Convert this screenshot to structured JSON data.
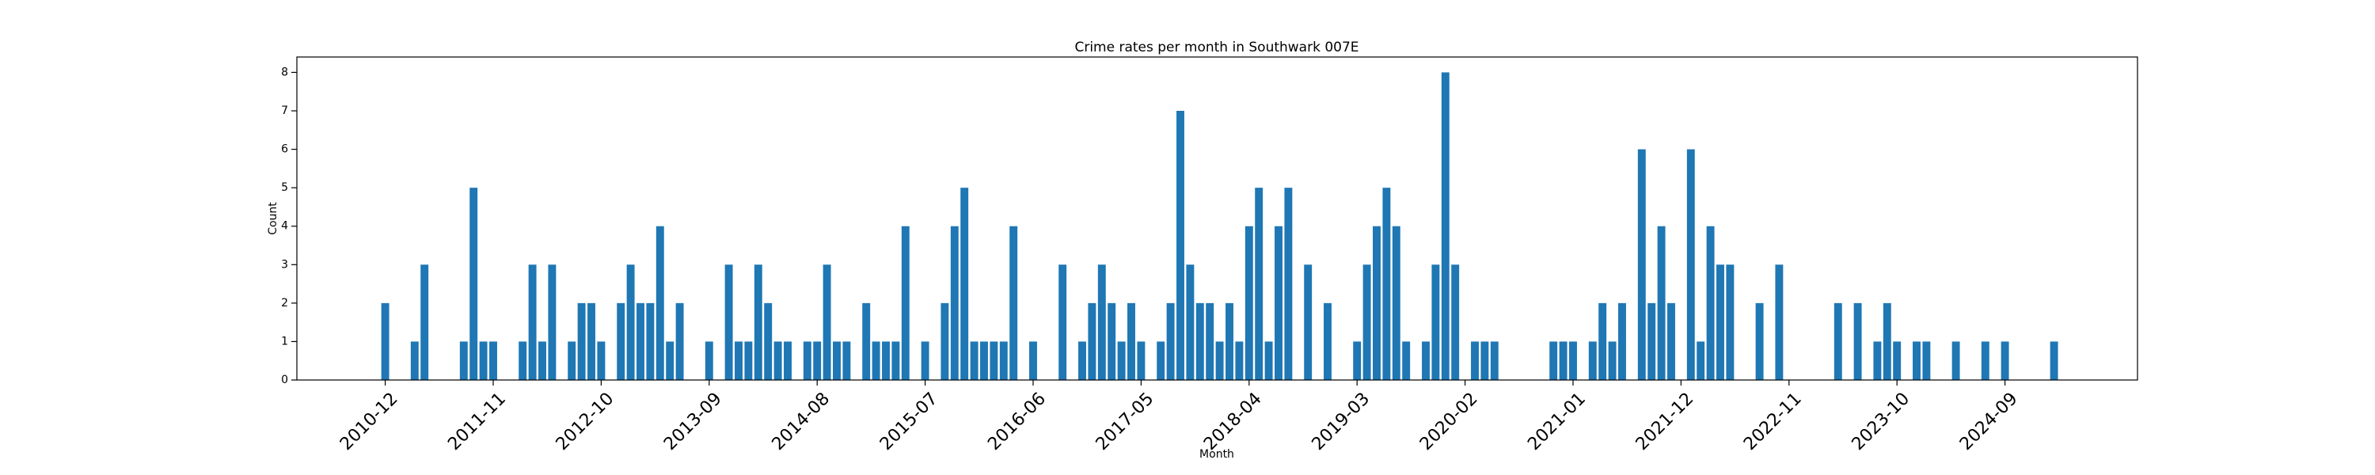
{
  "chart_data": {
    "type": "bar",
    "title": "Crime rates per month in Southwark 007E",
    "x_label": "Month",
    "y_label": "Count",
    "color": "#1f77b4",
    "categories": [
      "2010-12",
      null,
      null,
      null,
      null,
      null,
      null,
      null,
      null,
      null,
      null,
      "2011-11",
      null,
      null,
      null,
      null,
      null,
      null,
      null,
      null,
      null,
      null,
      "2012-10",
      null,
      null,
      null,
      null,
      null,
      null,
      null,
      null,
      null,
      null,
      "2013-09",
      null,
      null,
      null,
      null,
      null,
      null,
      null,
      null,
      null,
      null,
      "2014-08",
      null,
      null,
      null,
      null,
      null,
      null,
      null,
      null,
      null,
      null,
      "2015-07",
      null,
      null,
      null,
      null,
      null,
      null,
      null,
      null,
      null,
      null,
      "2016-06",
      null,
      null,
      null,
      null,
      null,
      null,
      null,
      null,
      null,
      null,
      "2017-05",
      null,
      null,
      null,
      null,
      null,
      null,
      null,
      null,
      null,
      null,
      "2018-04",
      null,
      null,
      null,
      null,
      null,
      null,
      null,
      null,
      null,
      null,
      "2019-03",
      null,
      null,
      null,
      null,
      null,
      null,
      null,
      null,
      null,
      null,
      "2020-02",
      null,
      null,
      null,
      null,
      null,
      null,
      null,
      null,
      null,
      null,
      "2021-01",
      null,
      null,
      null,
      null,
      null,
      null,
      null,
      null,
      null,
      null,
      "2021-12",
      null,
      null,
      null,
      null,
      null,
      null,
      null,
      null,
      null,
      null,
      "2022-11",
      null,
      null,
      null,
      null,
      null,
      null,
      null,
      null,
      null,
      null,
      "2023-10",
      null,
      null,
      null,
      null,
      null,
      null,
      null,
      null,
      null,
      null,
      "2024-09",
      null,
      null,
      null,
      null,
      null
    ],
    "values": [
      2,
      0,
      0,
      1,
      3,
      0,
      0,
      0,
      1,
      5,
      1,
      1,
      0,
      0,
      1,
      3,
      1,
      3,
      0,
      1,
      2,
      2,
      1,
      0,
      2,
      3,
      2,
      2,
      4,
      1,
      2,
      0,
      0,
      1,
      0,
      3,
      1,
      1,
      3,
      2,
      1,
      1,
      0,
      1,
      1,
      3,
      1,
      1,
      0,
      2,
      1,
      1,
      1,
      4,
      0,
      1,
      0,
      2,
      4,
      5,
      1,
      1,
      1,
      1,
      4,
      0,
      1,
      0,
      0,
      3,
      0,
      1,
      2,
      3,
      2,
      1,
      2,
      1,
      0,
      1,
      2,
      7,
      3,
      2,
      2,
      1,
      2,
      1,
      4,
      5,
      1,
      4,
      5,
      0,
      3,
      0,
      2,
      0,
      0,
      1,
      3,
      4,
      5,
      4,
      1,
      0,
      1,
      3,
      8,
      3,
      0,
      1,
      1,
      1,
      0,
      0,
      0,
      0,
      0,
      1,
      1,
      1,
      0,
      1,
      2,
      1,
      2,
      0,
      6,
      2,
      4,
      2,
      0,
      6,
      1,
      4,
      3,
      3,
      0,
      0,
      2,
      0,
      3,
      0,
      0,
      0,
      0,
      0,
      2,
      0,
      2,
      0,
      1,
      2,
      1,
      0,
      1,
      1,
      0,
      0,
      1,
      0,
      0,
      1,
      0,
      1,
      0,
      0,
      0,
      0,
      1
    ],
    "ylim": [
      0,
      8.4
    ],
    "yticks": [
      0,
      1,
      2,
      3,
      4,
      5,
      6,
      7,
      8
    ]
  }
}
